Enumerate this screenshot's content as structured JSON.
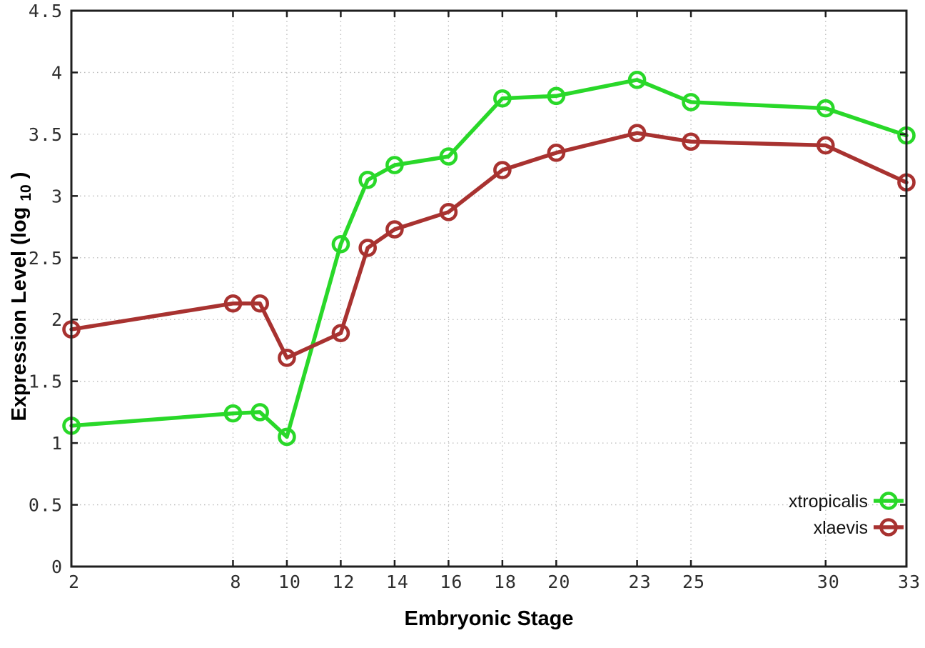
{
  "chart_data": {
    "type": "line",
    "title": "",
    "xlabel": "Embryonic Stage",
    "ylabel_main": "Expression Level (log",
    "ylabel_sub": "10",
    "ylabel_close": ")",
    "x": [
      2,
      8,
      9,
      10,
      12,
      13,
      14,
      16,
      18,
      20,
      23,
      25,
      30,
      33
    ],
    "xticks": [
      2,
      8,
      10,
      12,
      14,
      16,
      18,
      20,
      23,
      25,
      30,
      33
    ],
    "xtick_labels": [
      "2",
      "8",
      "10",
      "12",
      "14",
      "16",
      "18",
      "20",
      "23",
      "25",
      "30",
      "33"
    ],
    "yticks": [
      0,
      0.5,
      1,
      1.5,
      2,
      2.5,
      3,
      3.5,
      4,
      4.5
    ],
    "ytick_labels": [
      "0",
      "0.5",
      "1",
      "1.5",
      "2",
      "2.5",
      "3",
      "3.5",
      "4",
      "4.5"
    ],
    "xlim": [
      2,
      33
    ],
    "ylim": [
      0,
      4.5
    ],
    "grid": true,
    "legend_position": "inside-bottom-right",
    "series": [
      {
        "name": "xtropicalis",
        "color": "#29d829",
        "values": [
          1.14,
          1.24,
          1.25,
          1.05,
          2.61,
          3.13,
          3.25,
          3.32,
          3.79,
          3.81,
          3.94,
          3.76,
          3.71,
          3.49
        ]
      },
      {
        "name": "xlaevis",
        "color": "#a83230",
        "values": [
          1.92,
          2.13,
          2.13,
          1.69,
          1.89,
          2.58,
          2.73,
          2.87,
          3.21,
          3.35,
          3.51,
          3.44,
          3.41,
          3.11
        ]
      }
    ]
  },
  "style_colors": {
    "border": "#1f1f1f",
    "grid": "#b9b9b9",
    "tick_text": "#2e2e2e",
    "background": "#ffffff"
  }
}
